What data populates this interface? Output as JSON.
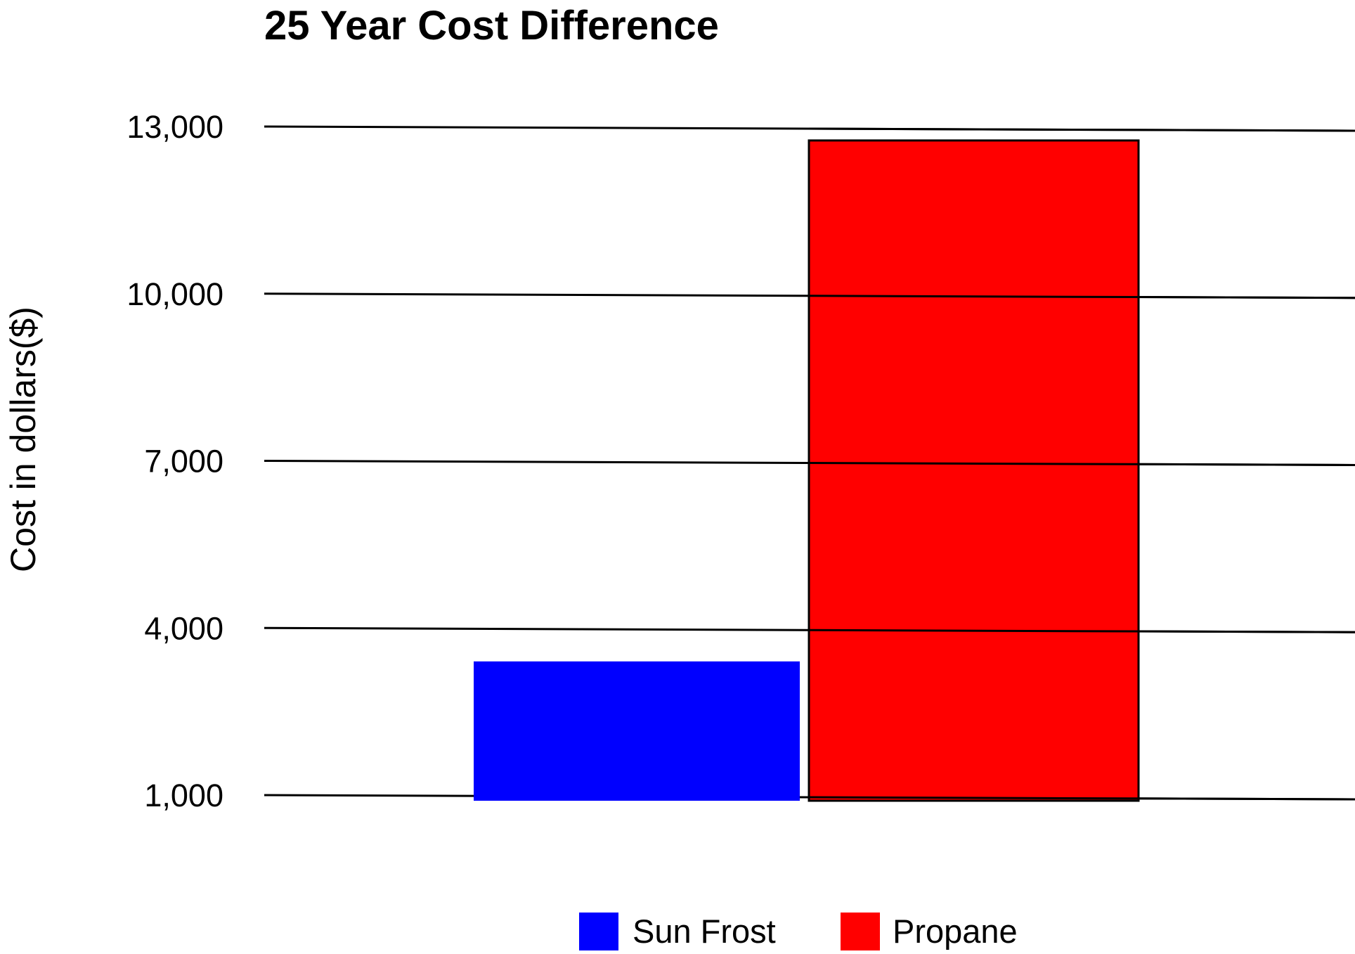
{
  "chart_data": {
    "type": "bar",
    "title": "25 Year Cost Difference",
    "xlabel": "",
    "ylabel": "Cost in dollars($)",
    "ylim": [
      1000,
      13000
    ],
    "yticks": [
      1000,
      4000,
      7000,
      10000,
      13000
    ],
    "ytick_labels": [
      "1,000",
      "4,000",
      "7,000",
      "10,000",
      "13,000"
    ],
    "grid": true,
    "legend_position": "bottom",
    "series": [
      {
        "name": "Sun Frost",
        "value": 3400,
        "color": "#0000ff"
      },
      {
        "name": "Propane",
        "value": 12750,
        "color": "#ff0000"
      }
    ]
  }
}
